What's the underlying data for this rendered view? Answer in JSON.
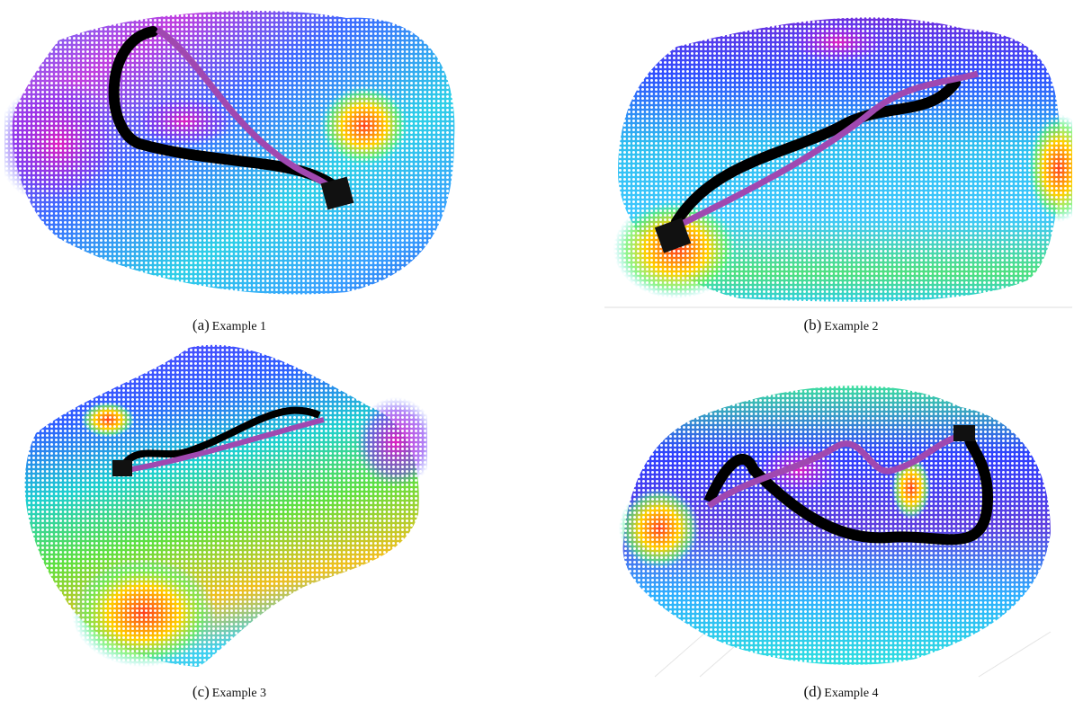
{
  "figures": [
    {
      "label": "(a)",
      "caption": "Example 1"
    },
    {
      "label": "(b)",
      "caption": "Example 2"
    },
    {
      "label": "(c)",
      "caption": "Example 3"
    },
    {
      "label": "(d)",
      "caption": "Example 4"
    }
  ]
}
